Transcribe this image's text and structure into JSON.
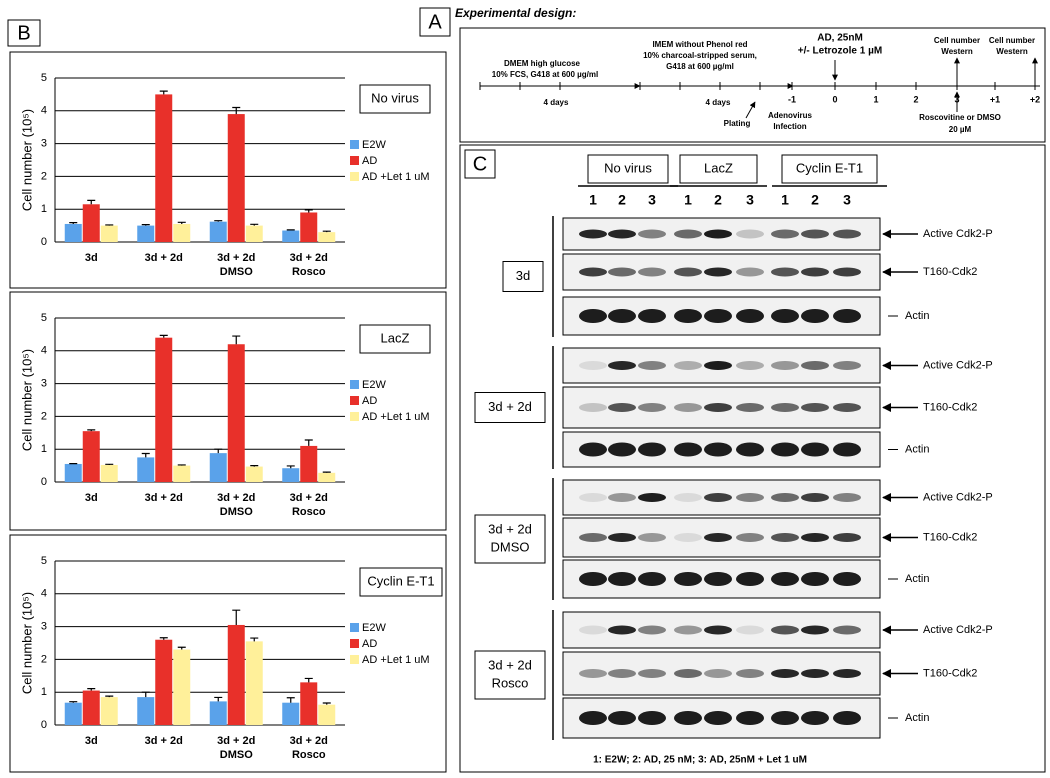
{
  "panel_labels": {
    "a": "A",
    "b": "B",
    "c": "C"
  },
  "chart_data": [
    {
      "type": "bar",
      "title": "No virus",
      "y_label": "Cell number (10⁵)",
      "categories": [
        [
          "3d"
        ],
        [
          "3d + 2d"
        ],
        [
          "3d + 2d",
          "DMSO"
        ],
        [
          "3d + 2d",
          "Rosco"
        ]
      ],
      "series": [
        {
          "name": "E2W",
          "color": "#5aa2ea",
          "values": [
            0.55,
            0.5,
            0.62,
            0.35
          ],
          "errors": [
            0.04,
            0.03,
            0.03,
            0.02
          ]
        },
        {
          "name": "AD",
          "color": "#e8302a",
          "values": [
            1.15,
            4.5,
            3.9,
            0.9
          ],
          "errors": [
            0.12,
            0.1,
            0.2,
            0.08
          ]
        },
        {
          "name": "AD +Let 1 uM",
          "color": "#fff09a",
          "values": [
            0.5,
            0.55,
            0.5,
            0.3
          ],
          "errors": [
            0.02,
            0.05,
            0.04,
            0.03
          ]
        }
      ],
      "ylim": [
        0,
        5
      ],
      "yticks": [
        0,
        1,
        2,
        3,
        4,
        5
      ],
      "grid": true,
      "legend": "right"
    },
    {
      "type": "bar",
      "title": "LacZ",
      "y_label": "Cell number (10⁵)",
      "categories": [
        [
          "3d"
        ],
        [
          "3d + 2d"
        ],
        [
          "3d + 2d",
          "DMSO"
        ],
        [
          "3d + 2d",
          "Rosco"
        ]
      ],
      "series": [
        {
          "name": "E2W",
          "color": "#5aa2ea",
          "values": [
            0.55,
            0.75,
            0.88,
            0.42
          ],
          "errors": [
            0.01,
            0.12,
            0.12,
            0.07
          ]
        },
        {
          "name": "AD",
          "color": "#e8302a",
          "values": [
            1.55,
            4.4,
            4.2,
            1.1
          ],
          "errors": [
            0.04,
            0.07,
            0.25,
            0.18
          ]
        },
        {
          "name": "AD +Let 1 uM",
          "color": "#fff09a",
          "values": [
            0.52,
            0.5,
            0.47,
            0.28
          ],
          "errors": [
            0.02,
            0.02,
            0.03,
            0.02
          ]
        }
      ],
      "ylim": [
        0,
        5
      ],
      "yticks": [
        0,
        1,
        2,
        3,
        4,
        5
      ],
      "grid": true,
      "legend": "right"
    },
    {
      "type": "bar",
      "title": "Cyclin E-T1",
      "y_label": "Cell number (10⁵)",
      "categories": [
        [
          "3d"
        ],
        [
          "3d + 2d"
        ],
        [
          "3d + 2d",
          "DMSO"
        ],
        [
          "3d + 2d",
          "Rosco"
        ]
      ],
      "series": [
        {
          "name": "E2W",
          "color": "#5aa2ea",
          "values": [
            0.68,
            0.85,
            0.72,
            0.68
          ],
          "errors": [
            0.03,
            0.15,
            0.12,
            0.15
          ]
        },
        {
          "name": "AD",
          "color": "#e8302a",
          "values": [
            1.05,
            2.6,
            3.05,
            1.3
          ],
          "errors": [
            0.06,
            0.06,
            0.45,
            0.12
          ]
        },
        {
          "name": "AD +Let 1 uM",
          "color": "#fff09a",
          "values": [
            0.85,
            2.3,
            2.55,
            0.62
          ],
          "errors": [
            0.03,
            0.07,
            0.1,
            0.05
          ]
        }
      ],
      "ylim": [
        0,
        5
      ],
      "yticks": [
        0,
        1,
        2,
        3,
        4,
        5
      ],
      "grid": true,
      "legend": "right"
    }
  ],
  "design": {
    "title": "Experimental design:",
    "texts": [
      "DMEM high glucose",
      "10% FCS, G418 at 600 µg/ml",
      "4 days",
      "IMEM without Phenol red",
      "10% charcoal-stripped serum,",
      "G418 at 600 µg/ml",
      "4 days",
      "Plating",
      "Adenovirus",
      "Infection",
      "AD, 25nM",
      "+/- Letrozole 1 µM",
      "Cell number",
      "Western",
      "Cell number",
      "Western",
      "Roscovitine or DMSO",
      "20 µM"
    ],
    "timeline": [
      "-1",
      "0",
      "1",
      "2",
      "3",
      "+1",
      "+2"
    ]
  },
  "blots": {
    "conditions": [
      "No virus",
      "LacZ",
      "Cyclin E-T1"
    ],
    "lanes": [
      "1",
      "2",
      "3"
    ],
    "groups": [
      [
        "3d"
      ],
      [
        "3d + 2d"
      ],
      [
        "3d + 2d",
        "DMSO"
      ],
      [
        "3d + 2d",
        "Rosco"
      ]
    ],
    "markers": [
      "Active Cdk2-P",
      "T160-Cdk2",
      "Actin"
    ],
    "footnote": "1: E2W; 2: AD, 25 nM; 3: AD, 25nM + Let 1 uM"
  }
}
